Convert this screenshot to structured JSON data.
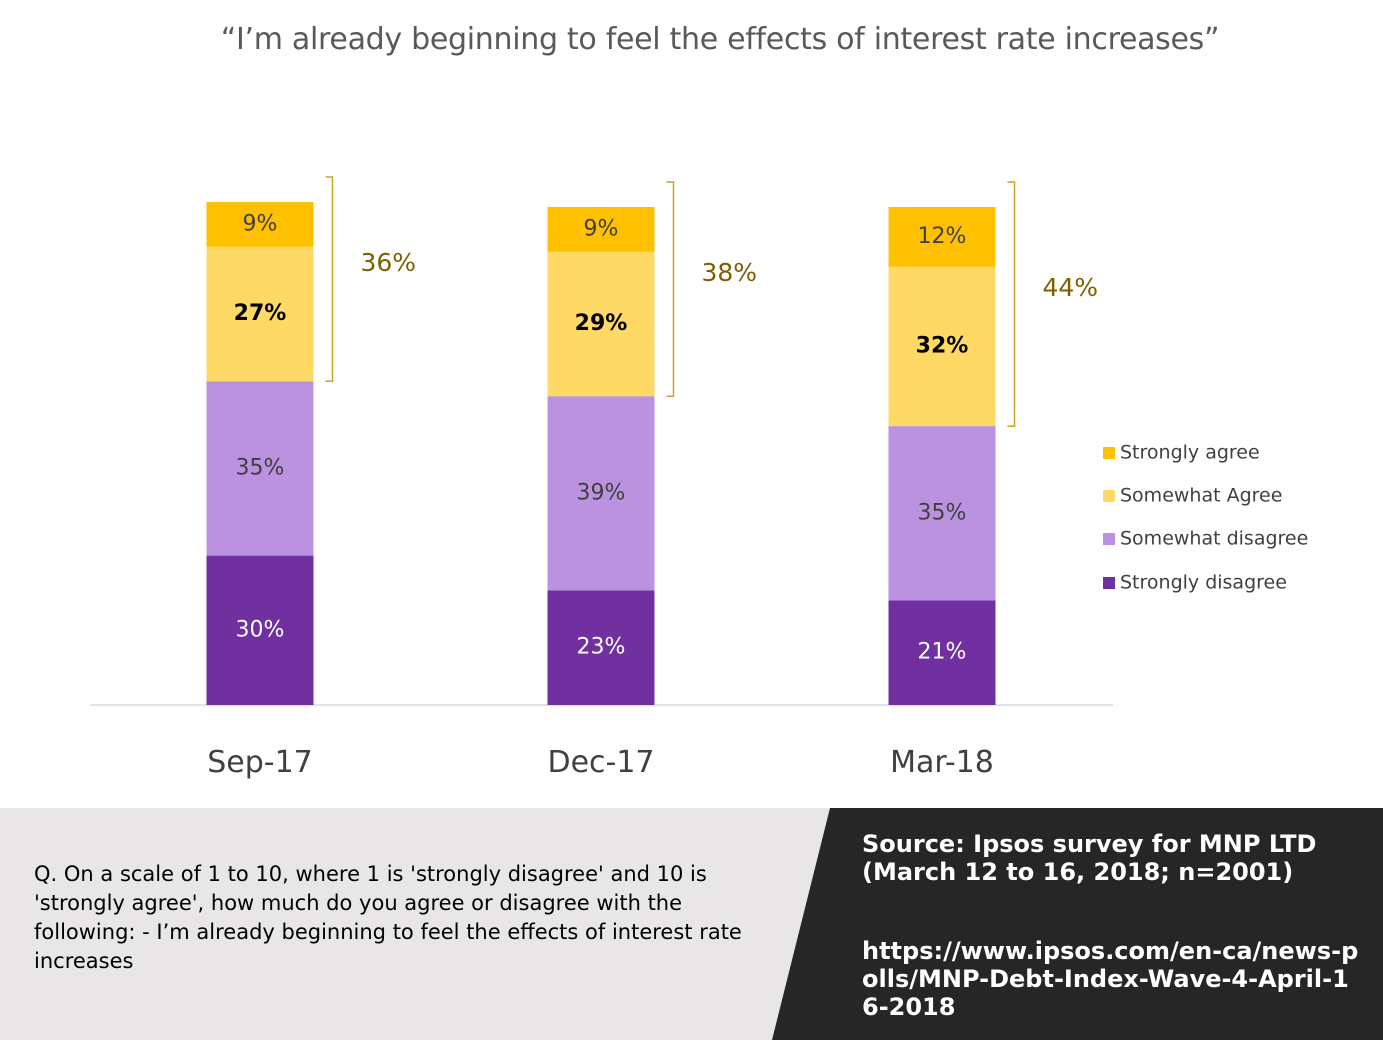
{
  "chart_data": {
    "type": "bar",
    "stacked": true,
    "title": "“I’m already beginning to feel the effects of interest rate increases”",
    "categories": [
      "Sep-17",
      "Dec-17",
      "Mar-18"
    ],
    "series": [
      {
        "name": "Strongly disagree",
        "values": [
          30,
          23,
          21
        ],
        "color": "#7030a0",
        "label_color": "#ffffff"
      },
      {
        "name": "Somewhat disagree",
        "values": [
          35,
          39,
          35
        ],
        "color": "#bb92df",
        "label_color": "#3f3f3f"
      },
      {
        "name": "Somewhat Agree",
        "values": [
          27,
          29,
          32
        ],
        "color": "#ffd966",
        "label_color": "#000000"
      },
      {
        "name": "Strongly agree",
        "values": [
          9,
          9,
          12
        ],
        "color": "#ffc000",
        "label_color": "#3f3f3f"
      }
    ],
    "value_labels": [
      [
        "30%",
        "35%",
        "27%",
        "9%"
      ],
      [
        "23%",
        "39%",
        "29%",
        "9%"
      ],
      [
        "21%",
        "35%",
        "32%",
        "12%"
      ]
    ],
    "agree_totals": [
      "36%",
      "38%",
      "44%"
    ],
    "legend_position": "right",
    "legend_order": [
      "Strongly agree",
      "Somewhat Agree",
      "Somewhat disagree",
      "Strongly disagree"
    ],
    "grid": false
  },
  "footer": {
    "question": "Q. On a scale of 1 to 10, where 1 is 'strongly disagree' and 10 is 'strongly agree', how much do you agree or disagree with the following: - I’m already beginning to feel the effects of interest rate increases",
    "source": "Source:  Ipsos survey for MNP LTD (March 12 to 16, 2018; n=2001)",
    "url": "https://www.ipsos.com/en-ca/news-polls/MNP-Debt-Index-Wave-4-April-16-2018"
  },
  "colors": {
    "footer_dark": "#262626",
    "footer_light": "#e8e6e6",
    "bracket": "#c9a227"
  }
}
